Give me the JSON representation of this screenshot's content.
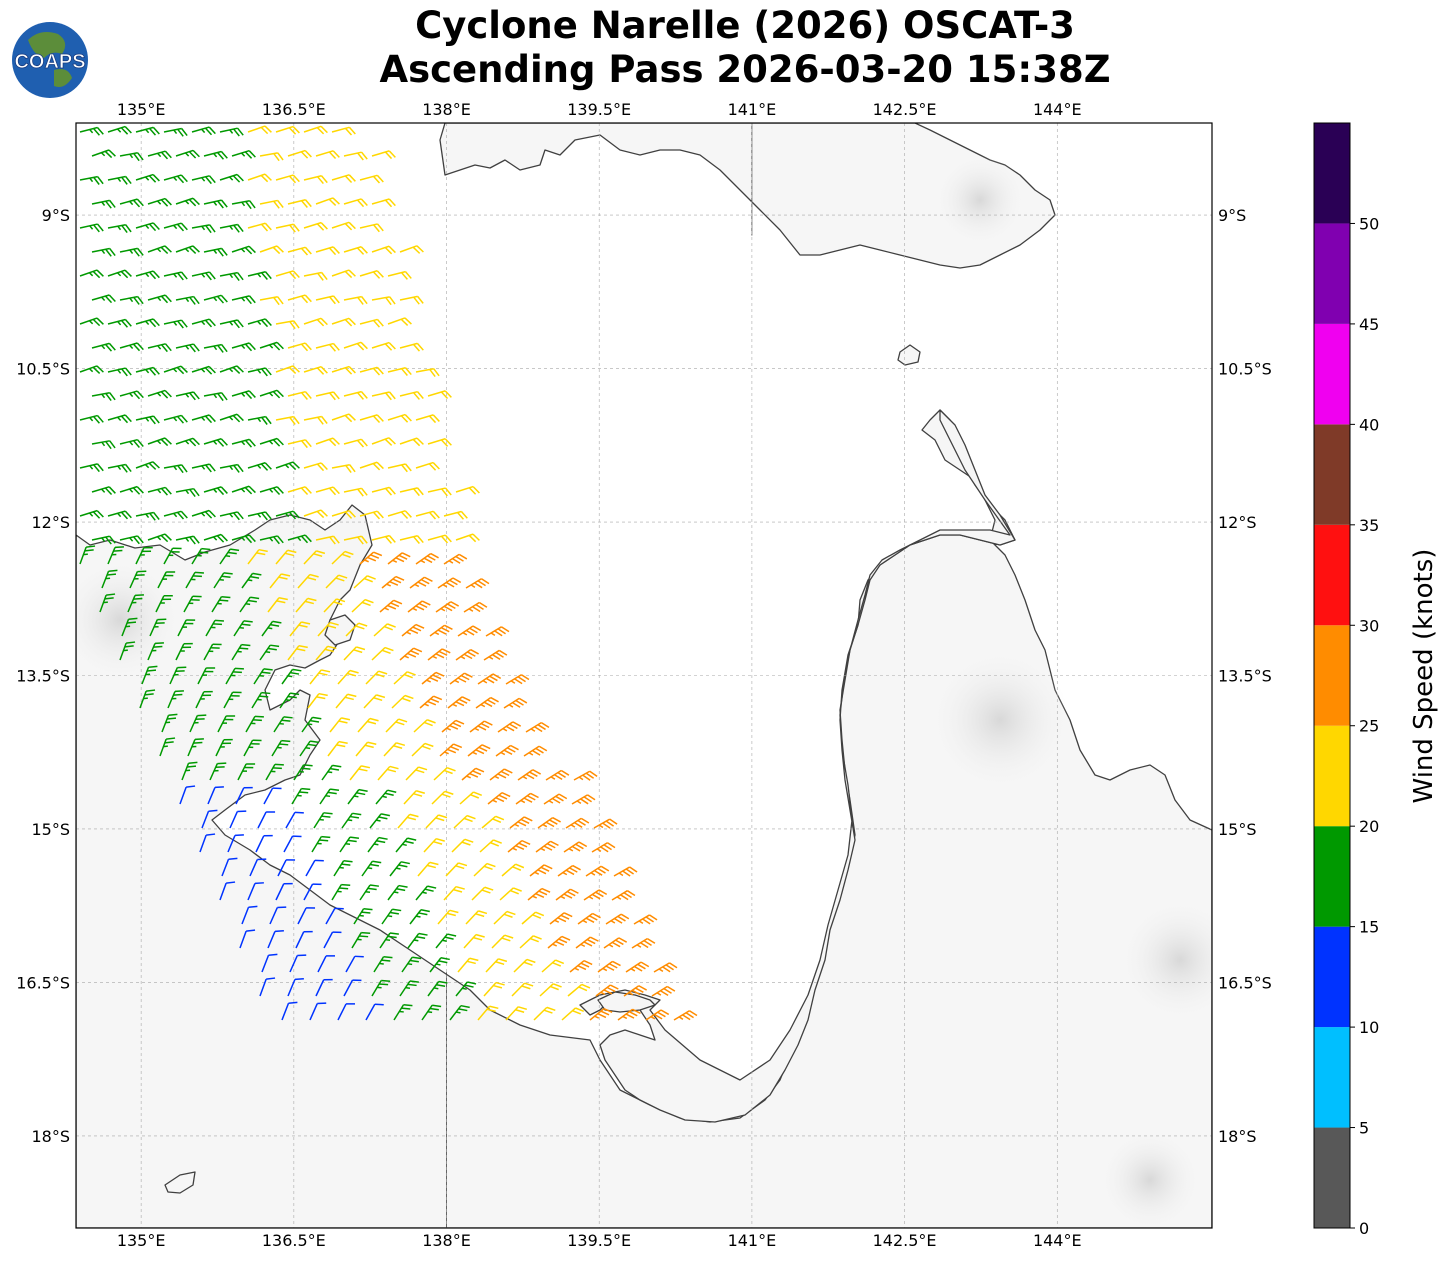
{
  "title": {
    "line1": "Cyclone Narelle (2026) OSCAT-3",
    "line2": "Ascending Pass 2026-03-20 15:38Z"
  },
  "logo": {
    "text": "COAPS",
    "icon": "globe-logo-icon"
  },
  "map": {
    "lon_range": [
      134.36,
      145.52
    ],
    "lat_range": [
      -8.1,
      -18.9
    ],
    "lon_ticks": [
      {
        "value": 135.0,
        "label": "135°E"
      },
      {
        "value": 136.5,
        "label": "136.5°E"
      },
      {
        "value": 138.0,
        "label": "138°E"
      },
      {
        "value": 139.5,
        "label": "139.5°E"
      },
      {
        "value": 141.0,
        "label": "141°E"
      },
      {
        "value": 142.5,
        "label": "142.5°E"
      },
      {
        "value": 144.0,
        "label": "144°E"
      }
    ],
    "lat_ticks": [
      {
        "value": -9.0,
        "label": "9°S"
      },
      {
        "value": -10.5,
        "label": "10.5°S"
      },
      {
        "value": -12.0,
        "label": "12°S"
      },
      {
        "value": -13.5,
        "label": "13.5°S"
      },
      {
        "value": -15.0,
        "label": "15°S"
      },
      {
        "value": -16.5,
        "label": "16.5°S"
      },
      {
        "value": -18.0,
        "label": "18°S"
      }
    ],
    "gridlines": true,
    "land_color": "#f6f6f6",
    "coast_color": "#404040"
  },
  "colorbar": {
    "label": "Wind Speed (knots)",
    "ticks": [
      "0",
      "5",
      "10",
      "15",
      "20",
      "25",
      "30",
      "35",
      "40",
      "45",
      "50"
    ],
    "bins": [
      {
        "min": 0,
        "max": 5,
        "color": "#585858"
      },
      {
        "min": 5,
        "max": 10,
        "color": "#00bfff"
      },
      {
        "min": 10,
        "max": 15,
        "color": "#0033ff"
      },
      {
        "min": 15,
        "max": 20,
        "color": "#009900"
      },
      {
        "min": 20,
        "max": 25,
        "color": "#ffd700"
      },
      {
        "min": 25,
        "max": 30,
        "color": "#ff8c00"
      },
      {
        "min": 30,
        "max": 35,
        "color": "#ff1010"
      },
      {
        "min": 35,
        "max": 40,
        "color": "#7f3a28"
      },
      {
        "min": 40,
        "max": 45,
        "color": "#f000f0"
      },
      {
        "min": 45,
        "max": 50,
        "color": "#8000b0"
      },
      {
        "min": 50,
        "max": 55,
        "color": "#2a0055"
      }
    ]
  }
}
